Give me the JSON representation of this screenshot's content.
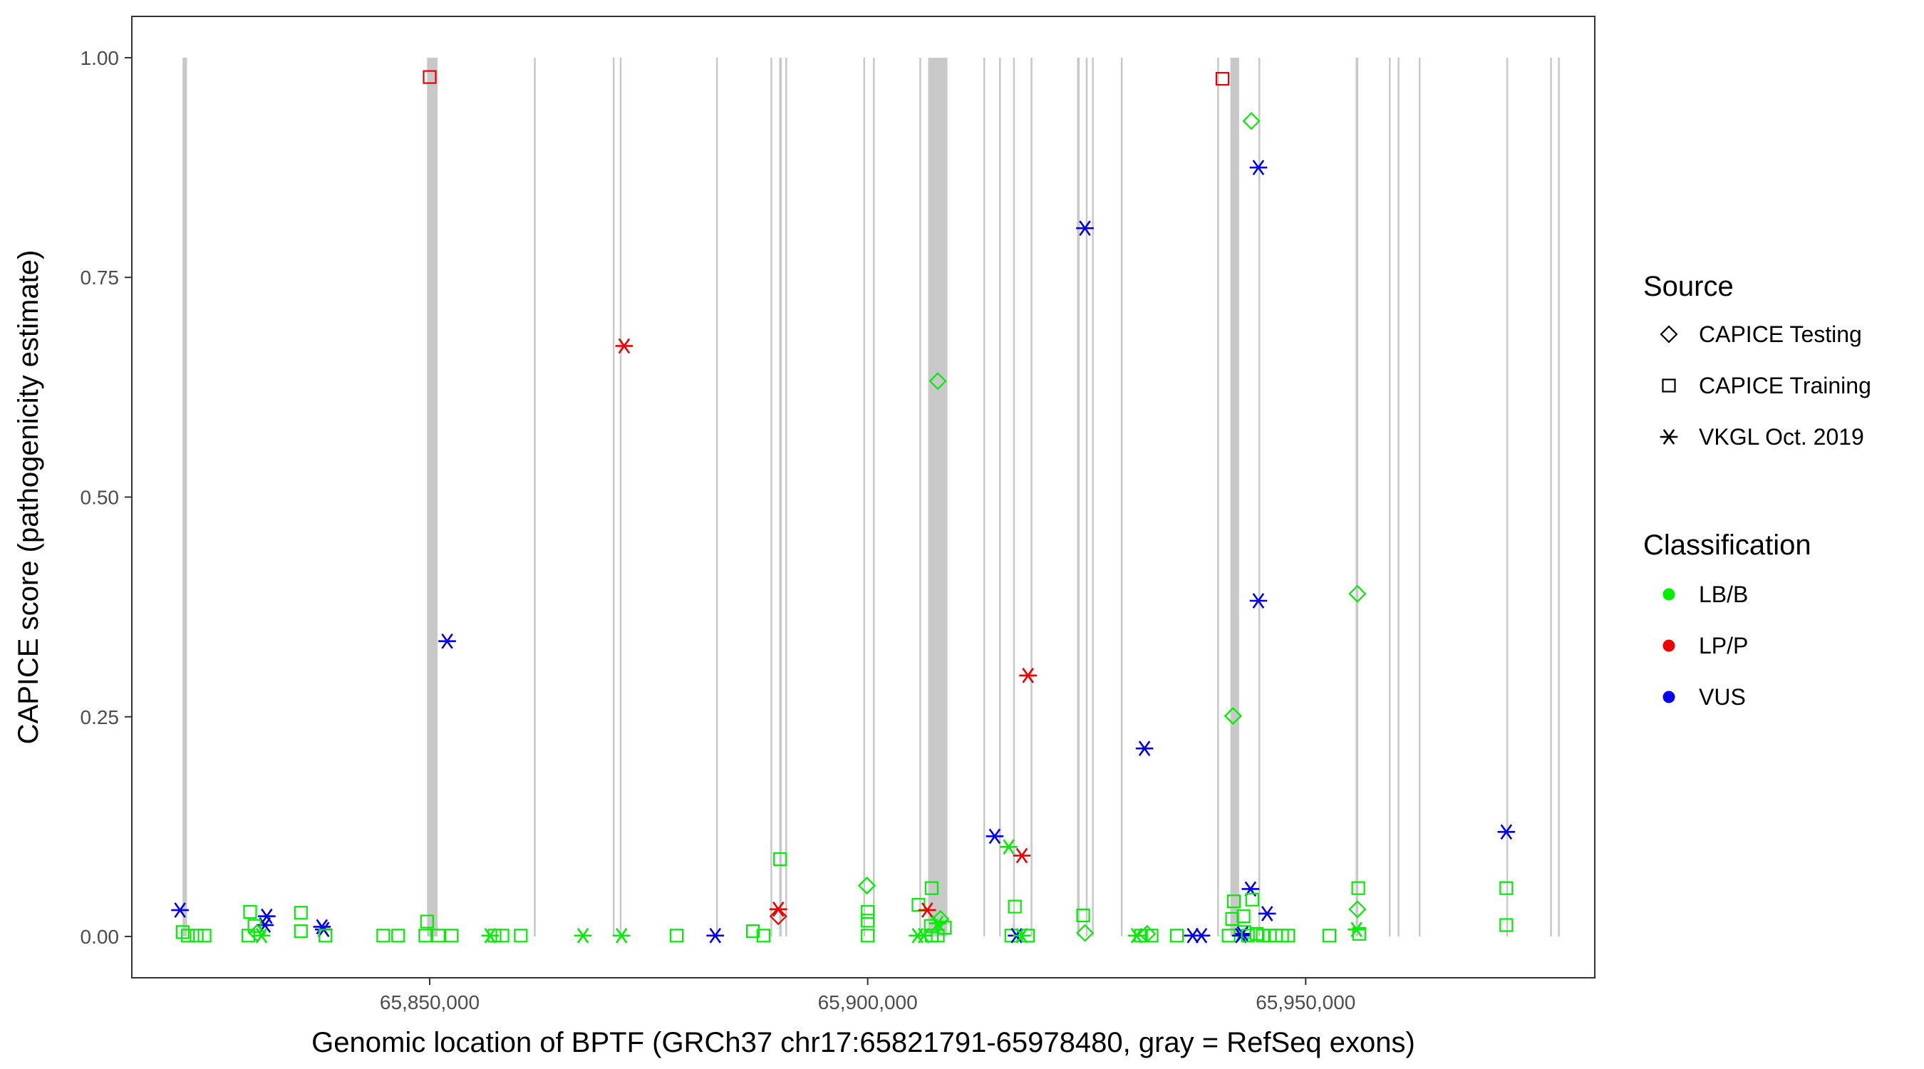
{
  "chart_data": {
    "type": "scatter",
    "xlabel": "Genomic location of BPTF (GRCh37 chr17:65821791-65978480, gray = RefSeq exons)",
    "ylabel": "CAPICE score (pathogenicity estimate)",
    "xlim": [
      65816000,
      65983000
    ],
    "ylim": [
      -0.047,
      1.047
    ],
    "x_ticks": [
      {
        "value": 65850000,
        "label": "65,850,000"
      },
      {
        "value": 65900000,
        "label": "65,900,000"
      },
      {
        "value": 65950000,
        "label": "65,950,000"
      }
    ],
    "y_ticks": [
      {
        "value": 0.0,
        "label": "0.00"
      },
      {
        "value": 0.25,
        "label": "0.25"
      },
      {
        "value": 0.5,
        "label": "0.50"
      },
      {
        "value": 0.75,
        "label": "0.75"
      },
      {
        "value": 1.0,
        "label": "1.00"
      }
    ],
    "grid": false,
    "exon_color": "#c8c8c8",
    "exons": [
      [
        65821791,
        65822300
      ],
      [
        65849700,
        65850900
      ],
      [
        65861900,
        65862100
      ],
      [
        65870900,
        65871100
      ],
      [
        65871700,
        65871900
      ],
      [
        65882700,
        65882900
      ],
      [
        65888900,
        65889100
      ],
      [
        65889900,
        65890200
      ],
      [
        65890600,
        65890800
      ],
      [
        65899500,
        65899700
      ],
      [
        65900600,
        65900800
      ],
      [
        65905900,
        65906100
      ],
      [
        65906900,
        65909100
      ],
      [
        65913200,
        65913400
      ],
      [
        65915000,
        65915200
      ],
      [
        65916600,
        65916800
      ],
      [
        65918600,
        65918800
      ],
      [
        65923900,
        65924200
      ],
      [
        65924900,
        65925100
      ],
      [
        65925600,
        65925800
      ],
      [
        65928900,
        65929100
      ],
      [
        65939900,
        65940100
      ],
      [
        65941400,
        65942400
      ],
      [
        65944600,
        65944800
      ],
      [
        65955700,
        65956000
      ],
      [
        65959500,
        65959700
      ],
      [
        65960500,
        65960700
      ],
      [
        65962900,
        65963100
      ],
      [
        65972900,
        65973100
      ],
      [
        65977900,
        65978100
      ],
      [
        65978800,
        65979000
      ]
    ],
    "legend": {
      "placement": "right",
      "source_title": "Source",
      "classification_title": "Classification",
      "sources": [
        {
          "name": "CAPICE Testing",
          "shape": "diamond"
        },
        {
          "name": "CAPICE Training",
          "shape": "square"
        },
        {
          "name": "VKGL Oct. 2019",
          "shape": "asterisk"
        }
      ],
      "classifications": [
        {
          "name": "LB/B",
          "color": "#00ee00"
        },
        {
          "name": "LP/P",
          "color": "#ee0000"
        },
        {
          "name": "VUS",
          "color": "#0000ee"
        }
      ]
    },
    "points": [
      {
        "x": 65850000,
        "y": 0.978,
        "source": "CAPICE Training",
        "class": "LP/P"
      },
      {
        "x": 65940500,
        "y": 0.976,
        "source": "CAPICE Training",
        "class": "LP/P"
      },
      {
        "x": 65943800,
        "y": 0.928,
        "source": "CAPICE Testing",
        "class": "LB/B"
      },
      {
        "x": 65944600,
        "y": 0.875,
        "source": "VKGL Oct. 2019",
        "class": "VUS"
      },
      {
        "x": 65924800,
        "y": 0.806,
        "source": "VKGL Oct. 2019",
        "class": "VUS"
      },
      {
        "x": 65872200,
        "y": 0.672,
        "source": "VKGL Oct. 2019",
        "class": "LP/P"
      },
      {
        "x": 65908000,
        "y": 0.632,
        "source": "CAPICE Testing",
        "class": "LB/B"
      },
      {
        "x": 65955900,
        "y": 0.39,
        "source": "CAPICE Testing",
        "class": "LB/B"
      },
      {
        "x": 65944600,
        "y": 0.382,
        "source": "VKGL Oct. 2019",
        "class": "VUS"
      },
      {
        "x": 65852000,
        "y": 0.336,
        "source": "VKGL Oct. 2019",
        "class": "VUS"
      },
      {
        "x": 65918300,
        "y": 0.297,
        "source": "VKGL Oct. 2019",
        "class": "LP/P"
      },
      {
        "x": 65941700,
        "y": 0.251,
        "source": "CAPICE Testing",
        "class": "LB/B"
      },
      {
        "x": 65931600,
        "y": 0.214,
        "source": "VKGL Oct. 2019",
        "class": "VUS"
      },
      {
        "x": 65972900,
        "y": 0.119,
        "source": "VKGL Oct. 2019",
        "class": "VUS"
      },
      {
        "x": 65914500,
        "y": 0.114,
        "source": "VKGL Oct. 2019",
        "class": "VUS"
      },
      {
        "x": 65916100,
        "y": 0.102,
        "source": "VKGL Oct. 2019",
        "class": "LB/B"
      },
      {
        "x": 65917600,
        "y": 0.092,
        "source": "VKGL Oct. 2019",
        "class": "LP/P"
      },
      {
        "x": 65890000,
        "y": 0.088,
        "source": "CAPICE Training",
        "class": "LB/B"
      },
      {
        "x": 65899900,
        "y": 0.058,
        "source": "CAPICE Testing",
        "class": "LB/B"
      },
      {
        "x": 65907300,
        "y": 0.055,
        "source": "CAPICE Training",
        "class": "LB/B"
      },
      {
        "x": 65956000,
        "y": 0.055,
        "source": "CAPICE Training",
        "class": "LB/B"
      },
      {
        "x": 65972900,
        "y": 0.055,
        "source": "CAPICE Training",
        "class": "LB/B"
      },
      {
        "x": 65943700,
        "y": 0.054,
        "source": "VKGL Oct. 2019",
        "class": "VUS"
      },
      {
        "x": 65941800,
        "y": 0.04,
        "source": "CAPICE Training",
        "class": "LB/B"
      },
      {
        "x": 65943900,
        "y": 0.042,
        "source": "CAPICE Training",
        "class": "LB/B"
      },
      {
        "x": 65905800,
        "y": 0.036,
        "source": "CAPICE Training",
        "class": "LB/B"
      },
      {
        "x": 65916800,
        "y": 0.034,
        "source": "CAPICE Training",
        "class": "LB/B"
      },
      {
        "x": 65955900,
        "y": 0.031,
        "source": "CAPICE Testing",
        "class": "LB/B"
      },
      {
        "x": 65889800,
        "y": 0.031,
        "source": "VKGL Oct. 2019",
        "class": "LP/P"
      },
      {
        "x": 65889800,
        "y": 0.023,
        "source": "CAPICE Testing",
        "class": "LP/P"
      },
      {
        "x": 65906800,
        "y": 0.03,
        "source": "VKGL Oct. 2019",
        "class": "LP/P"
      },
      {
        "x": 65821500,
        "y": 0.03,
        "source": "VKGL Oct. 2019",
        "class": "VUS"
      },
      {
        "x": 65900000,
        "y": 0.028,
        "source": "CAPICE Training",
        "class": "LB/B"
      },
      {
        "x": 65829500,
        "y": 0.028,
        "source": "CAPICE Training",
        "class": "LB/B"
      },
      {
        "x": 65835300,
        "y": 0.027,
        "source": "CAPICE Training",
        "class": "LB/B"
      },
      {
        "x": 65945600,
        "y": 0.026,
        "source": "VKGL Oct. 2019",
        "class": "VUS"
      },
      {
        "x": 65924600,
        "y": 0.024,
        "source": "CAPICE Training",
        "class": "LB/B"
      },
      {
        "x": 65942900,
        "y": 0.023,
        "source": "CAPICE Training",
        "class": "LB/B"
      },
      {
        "x": 65831400,
        "y": 0.023,
        "source": "VKGL Oct. 2019",
        "class": "VUS"
      },
      {
        "x": 65908300,
        "y": 0.02,
        "source": "CAPICE Testing",
        "class": "LB/B"
      },
      {
        "x": 65941600,
        "y": 0.02,
        "source": "CAPICE Training",
        "class": "LB/B"
      },
      {
        "x": 65900000,
        "y": 0.018,
        "source": "CAPICE Training",
        "class": "LB/B"
      },
      {
        "x": 65849700,
        "y": 0.017,
        "source": "CAPICE Training",
        "class": "LB/B"
      },
      {
        "x": 65908000,
        "y": 0.015,
        "source": "VKGL Oct. 2019",
        "class": "LB/B"
      },
      {
        "x": 65831200,
        "y": 0.013,
        "source": "VKGL Oct. 2019",
        "class": "VUS"
      },
      {
        "x": 65972900,
        "y": 0.013,
        "source": "CAPICE Training",
        "class": "LB/B"
      },
      {
        "x": 65907200,
        "y": 0.012,
        "source": "CAPICE Training",
        "class": "LB/B"
      },
      {
        "x": 65830000,
        "y": 0.012,
        "source": "CAPICE Training",
        "class": "LB/B"
      },
      {
        "x": 65837700,
        "y": 0.011,
        "source": "VKGL Oct. 2019",
        "class": "VUS"
      },
      {
        "x": 65908800,
        "y": 0.01,
        "source": "CAPICE Training",
        "class": "LB/B"
      },
      {
        "x": 65955800,
        "y": 0.008,
        "source": "VKGL Oct. 2019",
        "class": "LB/B"
      },
      {
        "x": 65837900,
        "y": 0.008,
        "source": "VKGL Oct. 2019",
        "class": "VUS"
      },
      {
        "x": 65886900,
        "y": 0.006,
        "source": "CAPICE Training",
        "class": "LB/B"
      },
      {
        "x": 65835300,
        "y": 0.006,
        "source": "CAPICE Training",
        "class": "LB/B"
      },
      {
        "x": 65821800,
        "y": 0.005,
        "source": "CAPICE Training",
        "class": "LB/B"
      },
      {
        "x": 65943000,
        "y": 0.005,
        "source": "CAPICE Training",
        "class": "LB/B"
      },
      {
        "x": 65830300,
        "y": 0.004,
        "source": "CAPICE Testing",
        "class": "LB/B"
      },
      {
        "x": 65924800,
        "y": 0.004,
        "source": "CAPICE Testing",
        "class": "LB/B"
      },
      {
        "x": 65956100,
        "y": 0.003,
        "source": "CAPICE Training",
        "class": "LB/B"
      },
      {
        "x": 65942800,
        "y": 0.003,
        "source": "VKGL Oct. 2019",
        "class": "VUS"
      },
      {
        "x": 65944400,
        "y": 0.003,
        "source": "CAPICE Training",
        "class": "LB/B"
      },
      {
        "x": 65931900,
        "y": 0.003,
        "source": "CAPICE Testing",
        "class": "LB/B"
      },
      {
        "x": 65822400,
        "y": 0.001,
        "source": "CAPICE Training",
        "class": "LB/B"
      },
      {
        "x": 65823400,
        "y": 0.001,
        "source": "CAPICE Training",
        "class": "LB/B"
      },
      {
        "x": 65824300,
        "y": 0.001,
        "source": "CAPICE Training",
        "class": "LB/B"
      },
      {
        "x": 65829300,
        "y": 0.001,
        "source": "CAPICE Training",
        "class": "LB/B"
      },
      {
        "x": 65830800,
        "y": 0.001,
        "source": "VKGL Oct. 2019",
        "class": "LB/B"
      },
      {
        "x": 65838100,
        "y": 0.001,
        "source": "CAPICE Training",
        "class": "LB/B"
      },
      {
        "x": 65844700,
        "y": 0.001,
        "source": "CAPICE Training",
        "class": "LB/B"
      },
      {
        "x": 65846400,
        "y": 0.001,
        "source": "CAPICE Training",
        "class": "LB/B"
      },
      {
        "x": 65849500,
        "y": 0.001,
        "source": "CAPICE Training",
        "class": "LB/B"
      },
      {
        "x": 65851000,
        "y": 0.001,
        "source": "CAPICE Training",
        "class": "LB/B"
      },
      {
        "x": 65852500,
        "y": 0.001,
        "source": "CAPICE Training",
        "class": "LB/B"
      },
      {
        "x": 65856900,
        "y": 0.001,
        "source": "VKGL Oct. 2019",
        "class": "LB/B"
      },
      {
        "x": 65857400,
        "y": 0.001,
        "source": "CAPICE Training",
        "class": "LB/B"
      },
      {
        "x": 65858300,
        "y": 0.001,
        "source": "CAPICE Training",
        "class": "LB/B"
      },
      {
        "x": 65860400,
        "y": 0.001,
        "source": "CAPICE Training",
        "class": "LB/B"
      },
      {
        "x": 65867500,
        "y": 0.001,
        "source": "VKGL Oct. 2019",
        "class": "LB/B"
      },
      {
        "x": 65871900,
        "y": 0.001,
        "source": "VKGL Oct. 2019",
        "class": "LB/B"
      },
      {
        "x": 65878200,
        "y": 0.001,
        "source": "CAPICE Training",
        "class": "LB/B"
      },
      {
        "x": 65882600,
        "y": 0.001,
        "source": "VKGL Oct. 2019",
        "class": "VUS"
      },
      {
        "x": 65888100,
        "y": 0.001,
        "source": "CAPICE Training",
        "class": "LB/B"
      },
      {
        "x": 65900000,
        "y": 0.001,
        "source": "CAPICE Training",
        "class": "LB/B"
      },
      {
        "x": 65905700,
        "y": 0.001,
        "source": "VKGL Oct. 2019",
        "class": "LB/B"
      },
      {
        "x": 65906400,
        "y": 0.001,
        "source": "VKGL Oct. 2019",
        "class": "LB/B"
      },
      {
        "x": 65907300,
        "y": 0.001,
        "source": "CAPICE Training",
        "class": "LB/B"
      },
      {
        "x": 65908000,
        "y": 0.001,
        "source": "CAPICE Training",
        "class": "LB/B"
      },
      {
        "x": 65916400,
        "y": 0.001,
        "source": "CAPICE Training",
        "class": "LB/B"
      },
      {
        "x": 65917000,
        "y": 0.001,
        "source": "VKGL Oct. 2019",
        "class": "VUS"
      },
      {
        "x": 65917600,
        "y": 0.001,
        "source": "VKGL Oct. 2019",
        "class": "LB/B"
      },
      {
        "x": 65918300,
        "y": 0.001,
        "source": "CAPICE Training",
        "class": "LB/B"
      },
      {
        "x": 65930700,
        "y": 0.001,
        "source": "VKGL Oct. 2019",
        "class": "LB/B"
      },
      {
        "x": 65931200,
        "y": 0.001,
        "source": "CAPICE Training",
        "class": "LB/B"
      },
      {
        "x": 65932400,
        "y": 0.001,
        "source": "CAPICE Training",
        "class": "LB/B"
      },
      {
        "x": 65935300,
        "y": 0.001,
        "source": "CAPICE Training",
        "class": "LB/B"
      },
      {
        "x": 65937100,
        "y": 0.001,
        "source": "VKGL Oct. 2019",
        "class": "VUS"
      },
      {
        "x": 65938100,
        "y": 0.001,
        "source": "VKGL Oct. 2019",
        "class": "VUS"
      },
      {
        "x": 65941200,
        "y": 0.001,
        "source": "CAPICE Training",
        "class": "LB/B"
      },
      {
        "x": 65942600,
        "y": 0.001,
        "source": "VKGL Oct. 2019",
        "class": "VUS"
      },
      {
        "x": 65943400,
        "y": 0.001,
        "source": "CAPICE Training",
        "class": "LB/B"
      },
      {
        "x": 65945100,
        "y": 0.001,
        "source": "CAPICE Training",
        "class": "LB/B"
      },
      {
        "x": 65945900,
        "y": 0.001,
        "source": "CAPICE Training",
        "class": "LB/B"
      },
      {
        "x": 65946600,
        "y": 0.001,
        "source": "CAPICE Training",
        "class": "LB/B"
      },
      {
        "x": 65947300,
        "y": 0.001,
        "source": "CAPICE Training",
        "class": "LB/B"
      },
      {
        "x": 65948000,
        "y": 0.001,
        "source": "CAPICE Training",
        "class": "LB/B"
      },
      {
        "x": 65952700,
        "y": 0.001,
        "source": "CAPICE Training",
        "class": "LB/B"
      }
    ]
  }
}
